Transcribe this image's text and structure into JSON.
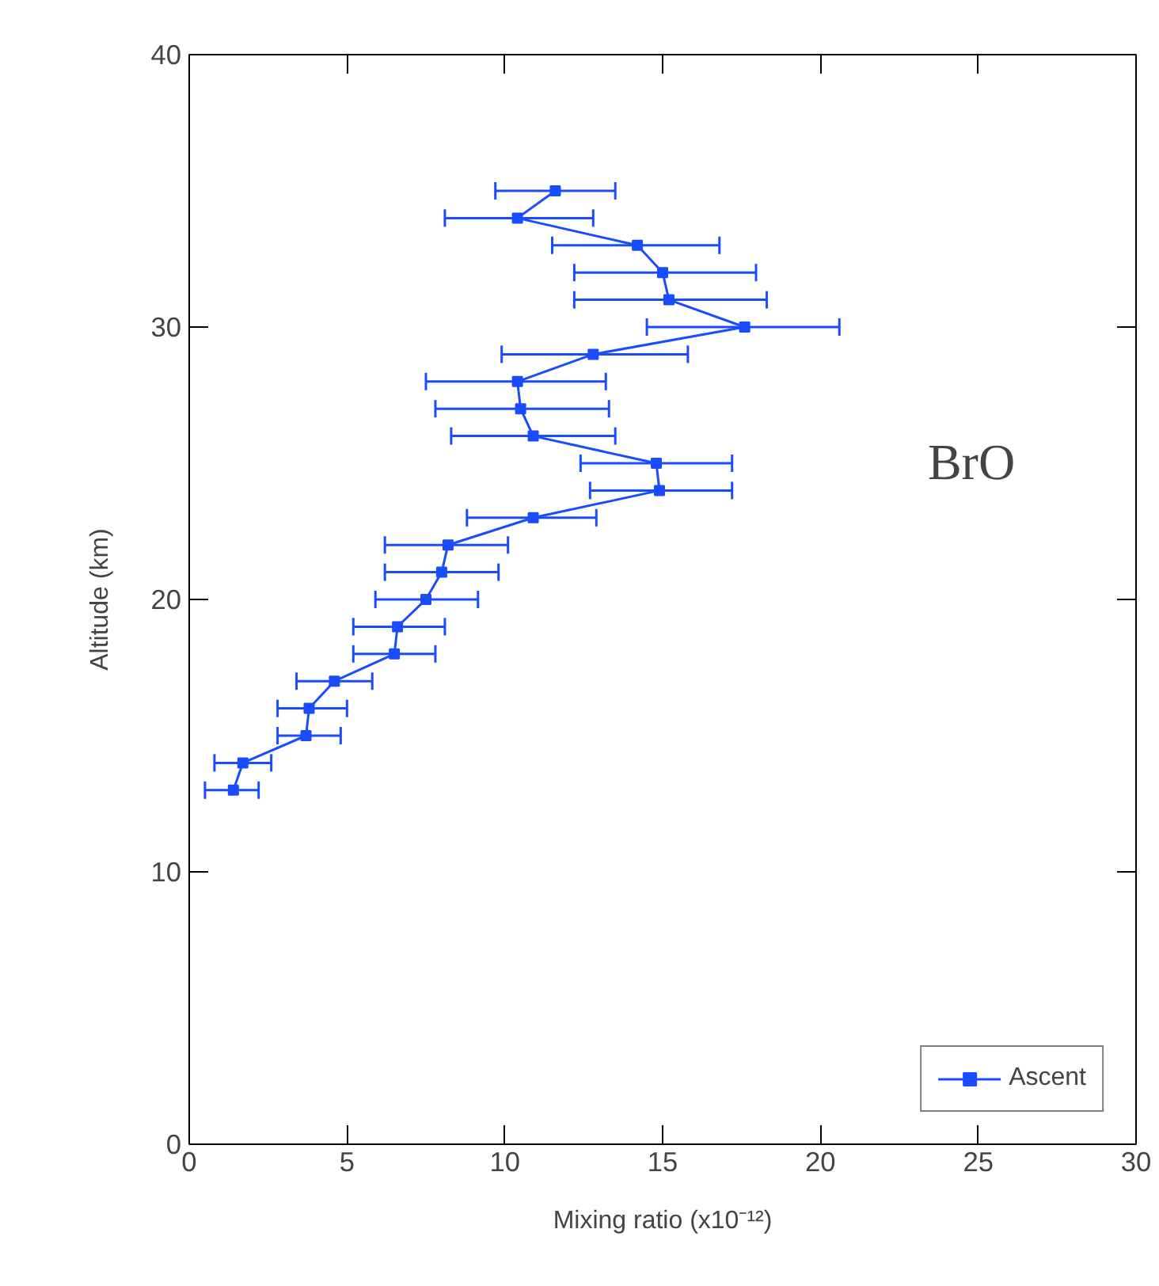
{
  "chart_data": {
    "type": "line",
    "xlabel": "Mixing ratio (x10⁻¹²)",
    "ylabel": "Altitude (km)",
    "annotations": [
      "BrO"
    ],
    "xlim": [
      0,
      30
    ],
    "xticks": [
      0,
      5,
      10,
      15,
      20,
      25,
      30
    ],
    "ylim": [
      0,
      40
    ],
    "yticks": [
      0,
      10,
      20,
      30,
      40
    ],
    "grid": false,
    "legend": "bottom right",
    "marker": "square",
    "line_style": "solid",
    "orientation": "horizontal",
    "x": [
      13,
      14,
      15,
      16,
      17,
      18,
      19,
      20,
      21,
      22,
      23,
      24,
      25,
      26,
      27,
      28,
      29,
      30,
      31,
      32,
      33,
      34,
      35
    ],
    "series": [
      {
        "name": "Ascent",
        "color": "#1a4cff",
        "values": [
          1.4,
          1.7,
          3.7,
          3.8,
          4.6,
          6.5,
          6.6,
          7.5,
          8.0,
          8.2,
          10.9,
          14.9,
          14.8,
          10.9,
          10.5,
          10.4,
          12.8,
          17.6,
          15.2,
          15.0,
          14.2,
          10.4,
          11.6
        ],
        "errors": [
          [
            0.5,
            2.2
          ],
          [
            0.8,
            2.6
          ],
          [
            2.8,
            4.8
          ],
          [
            2.8,
            5.0
          ],
          [
            3.4,
            5.8
          ],
          [
            5.2,
            7.8
          ],
          [
            5.2,
            8.1
          ],
          [
            5.9,
            9.15
          ],
          [
            6.2,
            9.8
          ],
          [
            6.2,
            10.1
          ],
          [
            8.8,
            12.9
          ],
          [
            12.7,
            17.2
          ],
          [
            12.4,
            17.2
          ],
          [
            8.3,
            13.5
          ],
          [
            7.8,
            13.3
          ],
          [
            7.5,
            13.2
          ],
          [
            9.9,
            15.8
          ],
          [
            14.5,
            20.6
          ],
          [
            12.2,
            18.3
          ],
          [
            12.2,
            17.96
          ],
          [
            11.5,
            16.8
          ],
          [
            8.1,
            12.8
          ],
          [
            9.7,
            13.5
          ]
        ]
      }
    ]
  }
}
